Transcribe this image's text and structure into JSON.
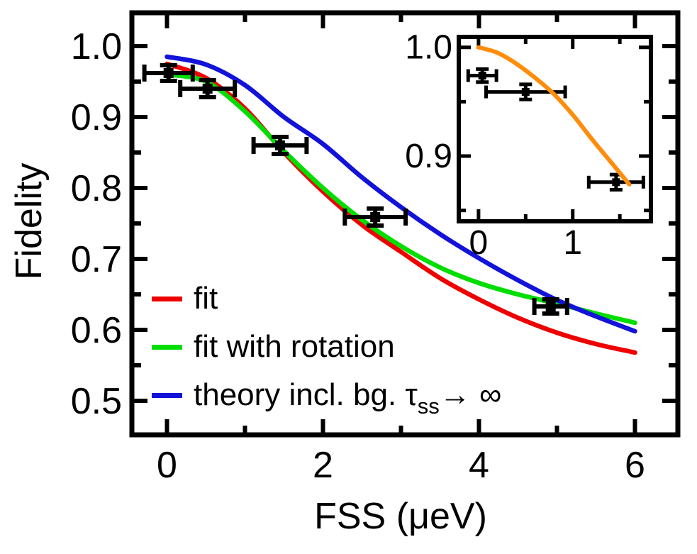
{
  "figure": {
    "background": "#ffffff",
    "description": "Fidelity versus fine-structure splitting (FSS) with fit curves and inset"
  },
  "colors": {
    "fit": "#ee0000",
    "fit_with_rotation": "#00dd00",
    "theory": "#1212d9",
    "inset_curve": "#ff8c0a",
    "data_points": "#000000",
    "axes": "#000000"
  },
  "legend": {
    "items": [
      {
        "label": "fit",
        "color": "#ee0000"
      },
      {
        "label": "fit with rotation",
        "color": "#00dd00"
      },
      {
        "label_pre": "theory incl. bg. τ",
        "label_sub": "ss",
        "label_post": "→ ∞",
        "color": "#1212d9"
      }
    ]
  },
  "chart_data": [
    {
      "name": "main",
      "type": "line",
      "title": "",
      "xlabel": "FSS (μeV)",
      "ylabel": "Fidelity",
      "xlim": [
        -0.45,
        6.55
      ],
      "ylim": [
        0.452,
        1.047
      ],
      "grid": false,
      "legend_position": "lower-left",
      "xticks": {
        "values": [
          0,
          2,
          4,
          6
        ],
        "labels": [
          "0",
          "2",
          "4",
          "6"
        ],
        "minor": [
          1,
          3,
          5
        ]
      },
      "yticks": {
        "values": [
          1.0,
          0.9,
          0.8,
          0.7,
          0.6,
          0.5
        ],
        "labels": [
          "1.0",
          "0.9",
          "0.8",
          "0.7",
          "0.6",
          "0.5"
        ],
        "minor": [
          0.95,
          0.85,
          0.75,
          0.65,
          0.55
        ]
      },
      "series": [
        {
          "name": "fit",
          "color": "#ee0000",
          "x": [
            0,
            0.5,
            1,
            1.5,
            2,
            2.5,
            3,
            3.5,
            4,
            4.5,
            5,
            5.5,
            6
          ],
          "y": [
            0.975,
            0.955,
            0.912,
            0.85,
            0.795,
            0.748,
            0.71,
            0.673,
            0.643,
            0.617,
            0.596,
            0.58,
            0.568
          ]
        },
        {
          "name": "fit with rotation",
          "color": "#00dd00",
          "x": [
            0,
            0.5,
            1,
            1.5,
            2,
            2.5,
            3,
            3.5,
            4,
            4.5,
            5,
            5.5,
            6
          ],
          "y": [
            0.96,
            0.95,
            0.908,
            0.852,
            0.8,
            0.755,
            0.718,
            0.688,
            0.666,
            0.65,
            0.637,
            0.623,
            0.61
          ]
        },
        {
          "name": "theory incl. bg. τss → ∞",
          "color": "#1212d9",
          "x": [
            0,
            0.5,
            1,
            1.5,
            2,
            2.5,
            3,
            3.5,
            4,
            4.5,
            5,
            5.5,
            6
          ],
          "y": [
            0.985,
            0.974,
            0.945,
            0.9,
            0.862,
            0.815,
            0.773,
            0.735,
            0.701,
            0.67,
            0.642,
            0.619,
            0.598
          ]
        }
      ],
      "scatter": {
        "name": "measured fidelity",
        "color": "#000000",
        "points": [
          {
            "x": 0.02,
            "y": 0.962,
            "xerr": 0.31,
            "yerr": 0.011
          },
          {
            "x": 0.52,
            "y": 0.94,
            "xerr": 0.35,
            "yerr": 0.012
          },
          {
            "x": 1.45,
            "y": 0.86,
            "xerr": 0.34,
            "yerr": 0.012
          },
          {
            "x": 2.67,
            "y": 0.759,
            "xerr": 0.39,
            "yerr": 0.012
          },
          {
            "x": 4.92,
            "y": 0.633,
            "xerr": 0.21,
            "yerr": 0.01
          }
        ]
      }
    },
    {
      "name": "inset",
      "type": "line",
      "title": "",
      "xlabel": "",
      "ylabel": "",
      "xlim": [
        -0.21,
        1.83
      ],
      "ylim": [
        0.84,
        1.0096
      ],
      "grid": false,
      "xticks": {
        "values": [
          0,
          1
        ],
        "labels": [
          "0",
          "1"
        ],
        "minor": [
          0.5,
          1.5
        ]
      },
      "yticks": {
        "values": [
          1.0,
          0.9
        ],
        "labels": [
          "1.0",
          "0.9"
        ],
        "minor": [
          0.95,
          0.85
        ]
      },
      "series": [
        {
          "name": "theory (inset)",
          "color": "#ff8c0a",
          "x": [
            0,
            0.2,
            0.4,
            0.6,
            0.8,
            1.0,
            1.2,
            1.4,
            1.6
          ],
          "y": [
            1.0,
            0.995,
            0.985,
            0.972,
            0.957,
            0.938,
            0.916,
            0.895,
            0.874
          ]
        }
      ],
      "scatter": {
        "name": "measured fidelity (inset)",
        "color": "#000000",
        "points": [
          {
            "x": 0.04,
            "y": 0.974,
            "xerr": 0.15,
            "yerr": 0.006
          },
          {
            "x": 0.5,
            "y": 0.959,
            "xerr": 0.42,
            "yerr": 0.007
          },
          {
            "x": 1.46,
            "y": 0.876,
            "xerr": 0.29,
            "yerr": 0.007
          }
        ]
      }
    }
  ]
}
